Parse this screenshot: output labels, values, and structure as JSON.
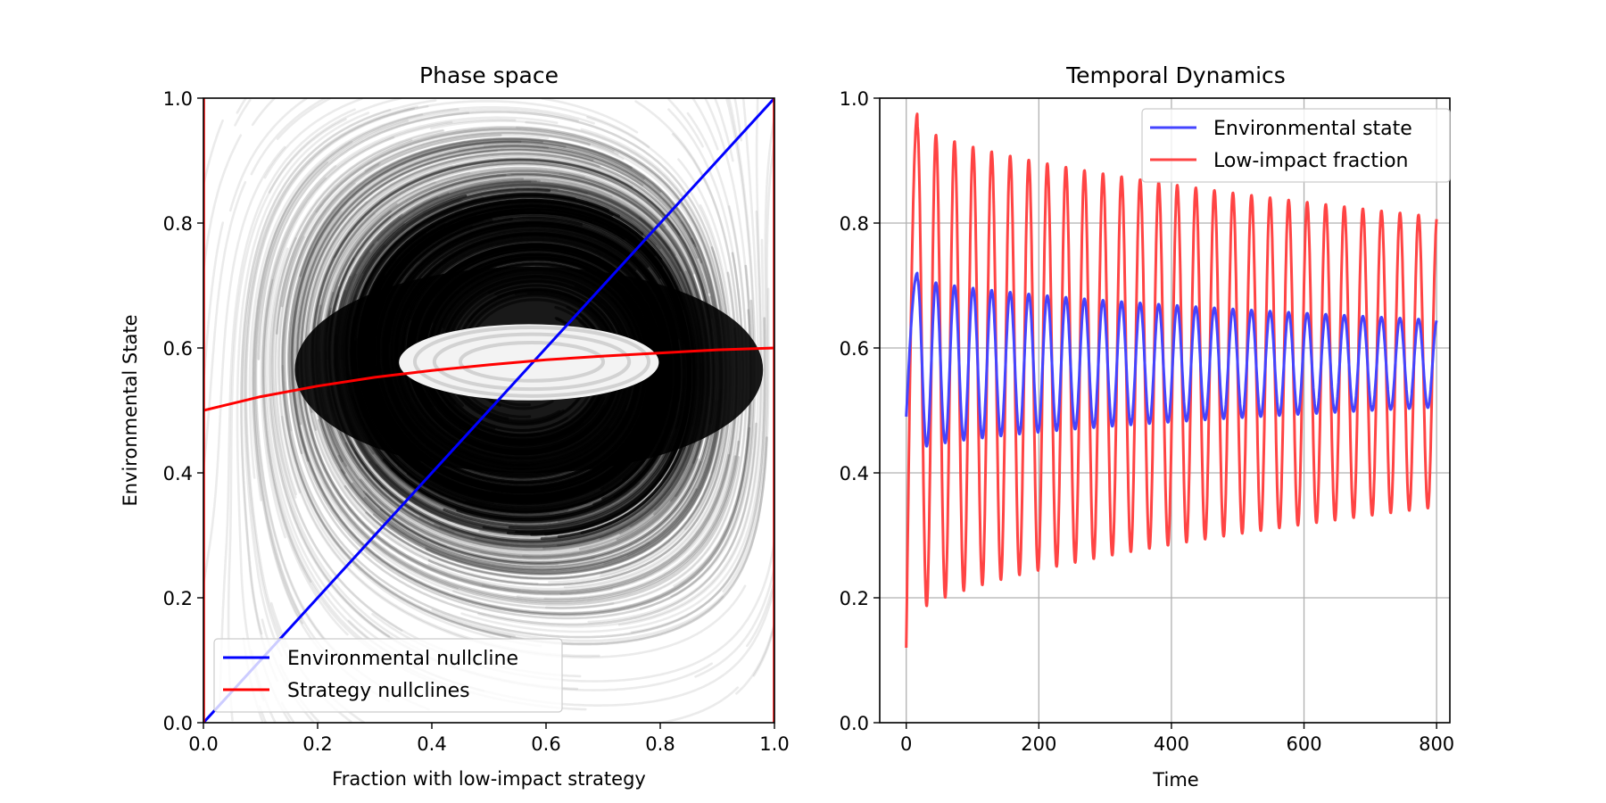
{
  "chart_data": [
    {
      "type": "phase-portrait",
      "title": "Phase space",
      "xlabel": "Fraction with low-impact strategy",
      "ylabel": "Environmental State",
      "xlim": [
        0,
        1
      ],
      "ylim": [
        0,
        1
      ],
      "xticks": [
        "0.0",
        "0.2",
        "0.4",
        "0.6",
        "0.8",
        "1.0"
      ],
      "yticks": [
        "0.0",
        "0.2",
        "0.4",
        "0.6",
        "0.8",
        "1.0"
      ],
      "grid": false,
      "legend_position": "lower-left",
      "fixed_point": {
        "x": 0.57,
        "y": 0.58
      },
      "series": [
        {
          "name": "Environmental nullcline",
          "color": "#0000ff",
          "x": [
            0,
            1
          ],
          "y": [
            0,
            1
          ]
        },
        {
          "name": "Strategy nullclines",
          "color": "#ff0000",
          "x": [
            0.0,
            0.1,
            0.2,
            0.3,
            0.4,
            0.5,
            0.6,
            0.7,
            0.8,
            0.9,
            1.0
          ],
          "y": [
            0.5,
            0.522,
            0.539,
            0.553,
            0.564,
            0.573,
            0.581,
            0.587,
            0.592,
            0.597,
            0.6
          ],
          "vertical_lines_x": [
            0,
            1
          ]
        }
      ],
      "colors": {
        "streamlines": "#000000",
        "axes": "#000000"
      }
    },
    {
      "type": "line",
      "title": "Temporal Dynamics",
      "xlabel": "Time",
      "ylabel": "",
      "xlim": [
        -40,
        820
      ],
      "ylim": [
        0,
        1
      ],
      "xticks": [
        "0",
        "200",
        "400",
        "600",
        "800"
      ],
      "yticks": [
        "0.0",
        "0.2",
        "0.4",
        "0.6",
        "0.8",
        "1.0"
      ],
      "grid": true,
      "legend_position": "upper-right",
      "time_range": [
        0,
        800
      ],
      "period": 28,
      "series": [
        {
          "name": "Environmental state",
          "color": "#4444ff",
          "start": 0.49,
          "center": 0.56,
          "first_peak": 0.72,
          "first_trough": 0.43,
          "final_peak": 0.645,
          "final_trough": 0.505
        },
        {
          "name": "Low-impact fraction",
          "color": "#ff4444",
          "start": 0.12,
          "center": 0.585,
          "first_peak": 0.975,
          "first_trough": 0.155,
          "final_peak": 0.81,
          "final_trough": 0.345
        }
      ]
    }
  ]
}
